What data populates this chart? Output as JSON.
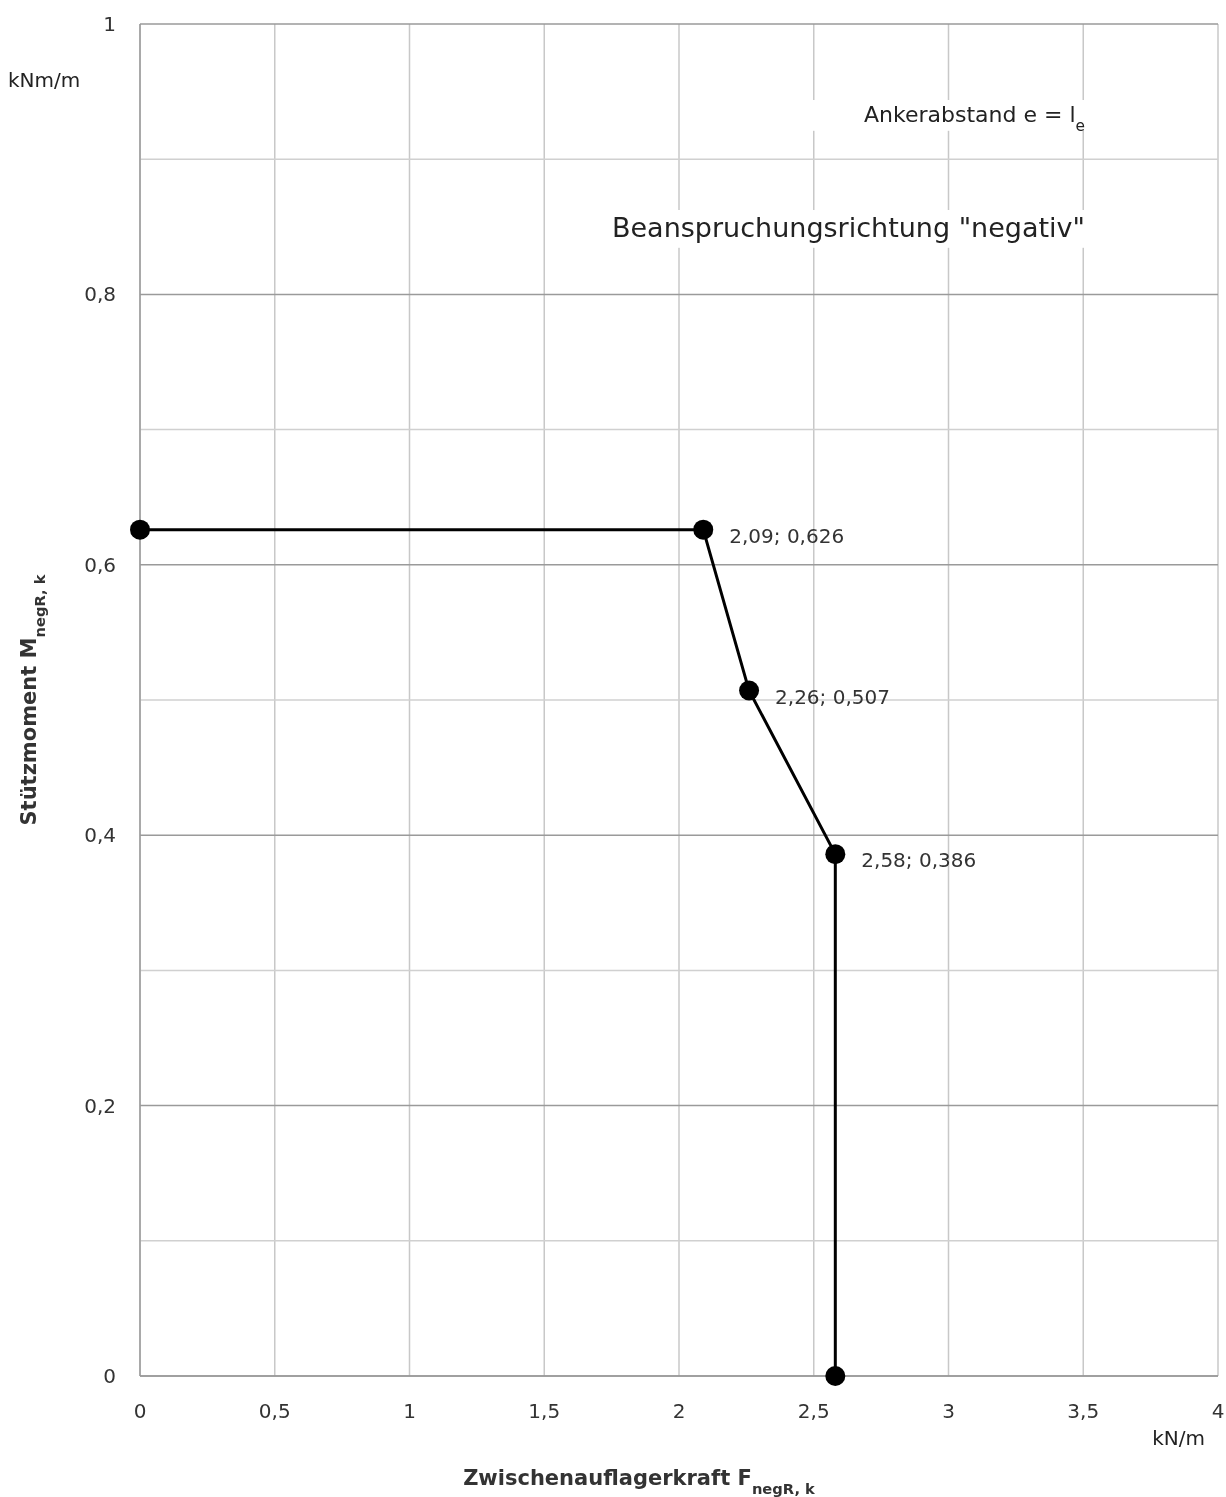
{
  "chart_data": {
    "type": "line",
    "xlabel": "Zwischenauflagerkraft F$_{negR, k}$",
    "ylabel": "Stützmoment M$_{negR, k}$",
    "annotations": [
      "kNm/m",
      "kN/m",
      "Ankerabstand e = l$_{e}$",
      "Beanspruchungsrichtung \"negativ\""
    ],
    "x": [
      0,
      2.09,
      2.26,
      2.58,
      2.58
    ],
    "series": [
      {
        "color": "#000000",
        "values": [
          0.626,
          0.626,
          0.507,
          0.386,
          0
        ],
        "value_labels": [
          null,
          "2,09; 0,626",
          "2,26; 0,507",
          "2,58; 0,386",
          null
        ]
      }
    ],
    "xlim": [
      0,
      4
    ],
    "ylim": [
      0,
      1
    ],
    "xticks": [
      0,
      {
        "value": 0.5,
        "label": "0,5"
      },
      1,
      {
        "value": 1.5,
        "label": "1,5"
      },
      2,
      {
        "value": 2.5,
        "label": "2,5"
      },
      3,
      {
        "value": 3.5,
        "label": "3,5"
      },
      4
    ],
    "yticks": [
      0,
      {
        "value": 0.1,
        "label": null
      },
      {
        "value": 0.2,
        "label": "0,2"
      },
      {
        "value": 0.3,
        "label": null
      },
      {
        "value": 0.4,
        "label": "0,4"
      },
      {
        "value": 0.5,
        "label": null
      },
      {
        "value": 0.6,
        "label": "0,6"
      },
      {
        "value": 0.7,
        "label": null
      },
      {
        "value": 0.8,
        "label": "0,8"
      },
      {
        "value": 0.9,
        "label": null
      },
      1
    ],
    "grid": true,
    "marker": "circle",
    "line_style": "solid"
  }
}
